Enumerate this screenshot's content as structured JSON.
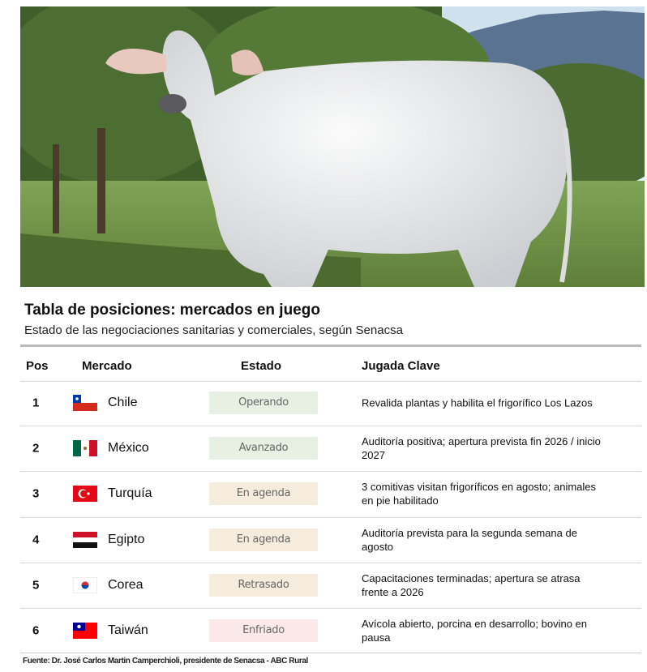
{
  "header": {
    "title": "Tabla de posiciones: mercados en juego",
    "subtitle": "Estado de las negociaciones sanitarias y comerciales, según Senacsa"
  },
  "table": {
    "columns": [
      "Pos",
      "Mercado",
      "Estado",
      "Jugada Clave"
    ],
    "rows": [
      [
        1,
        "Chile",
        "Operando",
        "Revalida plantas y habilita el frigorífico Los Lazos"
      ],
      [
        2,
        "México",
        "Avanzado",
        "Auditoría positiva; apertura prevista fin 2026 / inicio 2027"
      ],
      [
        3,
        "Turquía",
        "En agenda",
        "3 comitivas visitan frigoríficos en agosto; animales en pie habilitado"
      ],
      [
        4,
        "Egipto",
        "En agenda",
        "Auditoría prevista para la segunda semana de agosto"
      ],
      [
        5,
        "Corea",
        "Retrasado",
        "Capacitaciones terminadas; apertura se atrasa frente a 2026"
      ],
      [
        6,
        "Taiwán",
        "Enfriado",
        "Avícola abierto, porcina en desarrollo; bovino en pausa"
      ]
    ]
  },
  "footer": {
    "source": "Fuente: Dr. José Carlos Martin Camperchioli, presidente de Senacsa - ABC Rural"
  }
}
